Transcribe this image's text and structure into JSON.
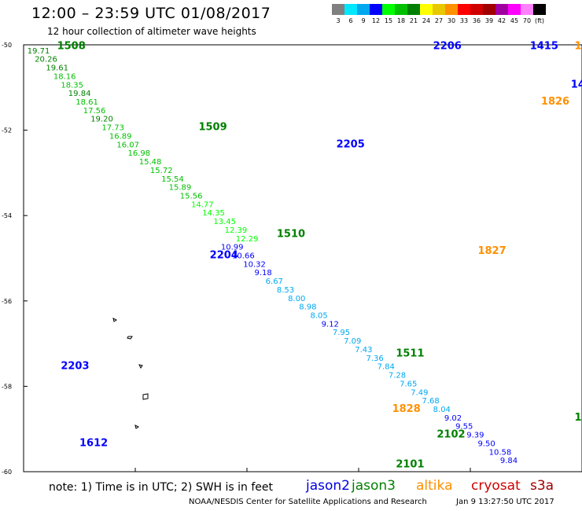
{
  "header": {
    "title": "12:00 – 23:59 UTC 01/08/2017",
    "subtitle": "12 hour collection of altimeter wave heights"
  },
  "colorbar": {
    "unit": "(ft)",
    "levels": [
      {
        "label": "3",
        "color": "#808080"
      },
      {
        "label": "6",
        "color": "#00e8ff"
      },
      {
        "label": "9",
        "color": "#00a8f0"
      },
      {
        "label": "12",
        "color": "#0000ff"
      },
      {
        "label": "15",
        "color": "#00ff00"
      },
      {
        "label": "18",
        "color": "#00c000"
      },
      {
        "label": "21",
        "color": "#008000"
      },
      {
        "label": "24",
        "color": "#ffff00"
      },
      {
        "label": "27",
        "color": "#e8c800"
      },
      {
        "label": "30",
        "color": "#ff9000"
      },
      {
        "label": "33",
        "color": "#ff0000"
      },
      {
        "label": "36",
        "color": "#d00000"
      },
      {
        "label": "39",
        "color": "#a00000"
      },
      {
        "label": "42",
        "color": "#a000a0"
      },
      {
        "label": "45",
        "color": "#ff00ff"
      },
      {
        "label": "70",
        "color": "#ff80ff"
      },
      {
        "label": "",
        "color": "#000000"
      }
    ]
  },
  "footer": {
    "note": "note:  1) Time is in UTC;  2) SWH is in feet",
    "satellites": [
      {
        "name": "jason2",
        "color": "#0000e0"
      },
      {
        "name": "jason3",
        "color": "#008000"
      },
      {
        "name": "altika",
        "color": "#ff9000"
      },
      {
        "name": "cryosat",
        "color": "#d00000"
      },
      {
        "name": "s3a",
        "color": "#a00000"
      }
    ],
    "credit": "NOAA/NESDIS Center for Satellite Applications and Research",
    "timestamp": "Jan  9 13:27:50 UTC 2017"
  },
  "colors": {
    "cyan": "#00e8ff",
    "sky": "#00a8f0",
    "blue": "#0000ff",
    "lgreen": "#00ff00",
    "green": "#00c000",
    "dgreen": "#008000",
    "yellow": "#ffff00",
    "gold": "#e8c800",
    "orange": "#ff9000",
    "gray": "#808080"
  },
  "chart_data": {
    "type": "scatter",
    "title": "12 hour collection of altimeter wave heights",
    "xlabel": "",
    "ylabel": "",
    "xlim": [
      -30,
      -15
    ],
    "ylim": [
      -60,
      -50
    ],
    "x_ticks": [
      -30,
      -27,
      -24,
      -21,
      -18,
      -15
    ],
    "y_ticks": [
      -50,
      -52,
      -54,
      -56,
      -58,
      -60
    ],
    "grid": false,
    "pass_labels": [
      {
        "label": "1508",
        "x": -29.1,
        "y": -50.1,
        "color": "dgreen"
      },
      {
        "label": "1509",
        "x": -25.3,
        "y": -52.0,
        "color": "dgreen"
      },
      {
        "label": "1510",
        "x": -23.2,
        "y": -54.5,
        "color": "dgreen"
      },
      {
        "label": "1511",
        "x": -20.0,
        "y": -57.3,
        "color": "dgreen"
      },
      {
        "label": "2205",
        "x": -21.6,
        "y": -52.4,
        "color": "blue"
      },
      {
        "label": "2204",
        "x": -25.0,
        "y": -55.0,
        "color": "blue"
      },
      {
        "label": "2203",
        "x": -29.0,
        "y": -57.6,
        "color": "blue"
      },
      {
        "label": "2206",
        "x": -19.0,
        "y": -50.1,
        "color": "blue"
      },
      {
        "label": "1612",
        "x": -28.5,
        "y": -59.4,
        "color": "blue"
      },
      {
        "label": "1827",
        "x": -17.8,
        "y": -54.9,
        "color": "orange"
      },
      {
        "label": "1828",
        "x": -20.1,
        "y": -58.6,
        "color": "orange"
      },
      {
        "label": "1826",
        "x": -16.1,
        "y": -51.4,
        "color": "orange"
      },
      {
        "label": "1825",
        "x": -15.2,
        "y": -50.1,
        "color": "orange"
      },
      {
        "label": "1415",
        "x": -16.4,
        "y": -50.1,
        "color": "blue"
      },
      {
        "label": "1416",
        "x": -15.3,
        "y": -51.0,
        "color": "blue"
      },
      {
        "label": "2102",
        "x": -18.9,
        "y": -59.2,
        "color": "dgreen"
      },
      {
        "label": "2101",
        "x": -20.0,
        "y": -59.9,
        "color": "dgreen"
      },
      {
        "label": "151",
        "x": -15.2,
        "y": -58.8,
        "color": "dgreen"
      }
    ],
    "points": [
      {
        "x": -29.9,
        "y": -50.2,
        "v": "19.71",
        "c": "dgreen"
      },
      {
        "x": -29.7,
        "y": -50.4,
        "v": "20.26",
        "c": "dgreen"
      },
      {
        "x": -29.4,
        "y": -50.6,
        "v": "19.61",
        "c": "dgreen"
      },
      {
        "x": -29.2,
        "y": -50.8,
        "v": "18.16",
        "c": "green"
      },
      {
        "x": -29.0,
        "y": -51.0,
        "v": "18.35",
        "c": "green"
      },
      {
        "x": -28.8,
        "y": -51.2,
        "v": "19.84",
        "c": "dgreen"
      },
      {
        "x": -28.6,
        "y": -51.4,
        "v": "18.61",
        "c": "green"
      },
      {
        "x": -28.4,
        "y": -51.6,
        "v": "17.56",
        "c": "green"
      },
      {
        "x": -28.2,
        "y": -51.8,
        "v": "19.20",
        "c": "dgreen"
      },
      {
        "x": -27.9,
        "y": -52.0,
        "v": "17.73",
        "c": "green"
      },
      {
        "x": -27.7,
        "y": -52.2,
        "v": "16.89",
        "c": "green"
      },
      {
        "x": -27.5,
        "y": -52.4,
        "v": "16.07",
        "c": "green"
      },
      {
        "x": -27.2,
        "y": -52.6,
        "v": "16.98",
        "c": "green"
      },
      {
        "x": -26.9,
        "y": -52.8,
        "v": "15.48",
        "c": "green"
      },
      {
        "x": -26.6,
        "y": -53.0,
        "v": "15.72",
        "c": "green"
      },
      {
        "x": -26.3,
        "y": -53.2,
        "v": "15.54",
        "c": "green"
      },
      {
        "x": -26.1,
        "y": -53.4,
        "v": "15.89",
        "c": "green"
      },
      {
        "x": -25.8,
        "y": -53.6,
        "v": "15.56",
        "c": "green"
      },
      {
        "x": -25.5,
        "y": -53.8,
        "v": "14.77",
        "c": "lgreen"
      },
      {
        "x": -25.2,
        "y": -54.0,
        "v": "14.35",
        "c": "lgreen"
      },
      {
        "x": -24.9,
        "y": -54.2,
        "v": "13.45",
        "c": "lgreen"
      },
      {
        "x": -24.6,
        "y": -54.4,
        "v": "12.39",
        "c": "lgreen"
      },
      {
        "x": -24.3,
        "y": -54.6,
        "v": "12.29",
        "c": "lgreen"
      },
      {
        "x": -24.7,
        "y": -54.8,
        "v": "10.99",
        "c": "blue"
      },
      {
        "x": -24.4,
        "y": -55.0,
        "v": "10.66",
        "c": "blue"
      },
      {
        "x": -24.1,
        "y": -55.2,
        "v": "10.32",
        "c": "blue"
      },
      {
        "x": -23.8,
        "y": -55.4,
        "v": "9.18",
        "c": "blue"
      },
      {
        "x": -23.5,
        "y": -55.6,
        "v": "6.67",
        "c": "sky"
      },
      {
        "x": -23.2,
        "y": -55.8,
        "v": "8.53",
        "c": "sky"
      },
      {
        "x": -22.9,
        "y": -56.0,
        "v": "8.00",
        "c": "sky"
      },
      {
        "x": -22.6,
        "y": -56.2,
        "v": "8.98",
        "c": "sky"
      },
      {
        "x": -22.3,
        "y": -56.4,
        "v": "8.05",
        "c": "sky"
      },
      {
        "x": -22.0,
        "y": -56.6,
        "v": "9.12",
        "c": "blue"
      },
      {
        "x": -21.7,
        "y": -56.8,
        "v": "7.95",
        "c": "sky"
      },
      {
        "x": -21.4,
        "y": -57.0,
        "v": "7.09",
        "c": "sky"
      },
      {
        "x": -21.1,
        "y": -57.2,
        "v": "7.43",
        "c": "sky"
      },
      {
        "x": -20.8,
        "y": -57.4,
        "v": "7.36",
        "c": "sky"
      },
      {
        "x": -20.5,
        "y": -57.6,
        "v": "7.84",
        "c": "sky"
      },
      {
        "x": -20.2,
        "y": -57.8,
        "v": "7.28",
        "c": "sky"
      },
      {
        "x": -19.9,
        "y": -58.0,
        "v": "7.65",
        "c": "sky"
      },
      {
        "x": -19.6,
        "y": -58.2,
        "v": "7.49",
        "c": "sky"
      },
      {
        "x": -19.3,
        "y": -58.4,
        "v": "7.68",
        "c": "sky"
      },
      {
        "x": -19.0,
        "y": -58.6,
        "v": "8.04",
        "c": "sky"
      },
      {
        "x": -18.7,
        "y": -58.8,
        "v": "9.02",
        "c": "blue"
      },
      {
        "x": -18.4,
        "y": -59.0,
        "v": "9.55",
        "c": "blue"
      },
      {
        "x": -18.1,
        "y": -59.2,
        "v": "9.39",
        "c": "blue"
      },
      {
        "x": -17.8,
        "y": -59.4,
        "v": "9.50",
        "c": "blue"
      },
      {
        "x": -17.5,
        "y": -59.6,
        "v": "10.58",
        "c": "blue"
      },
      {
        "x": -17.2,
        "y": -59.8,
        "v": "9.84",
        "c": "blue"
      }
    ]
  }
}
